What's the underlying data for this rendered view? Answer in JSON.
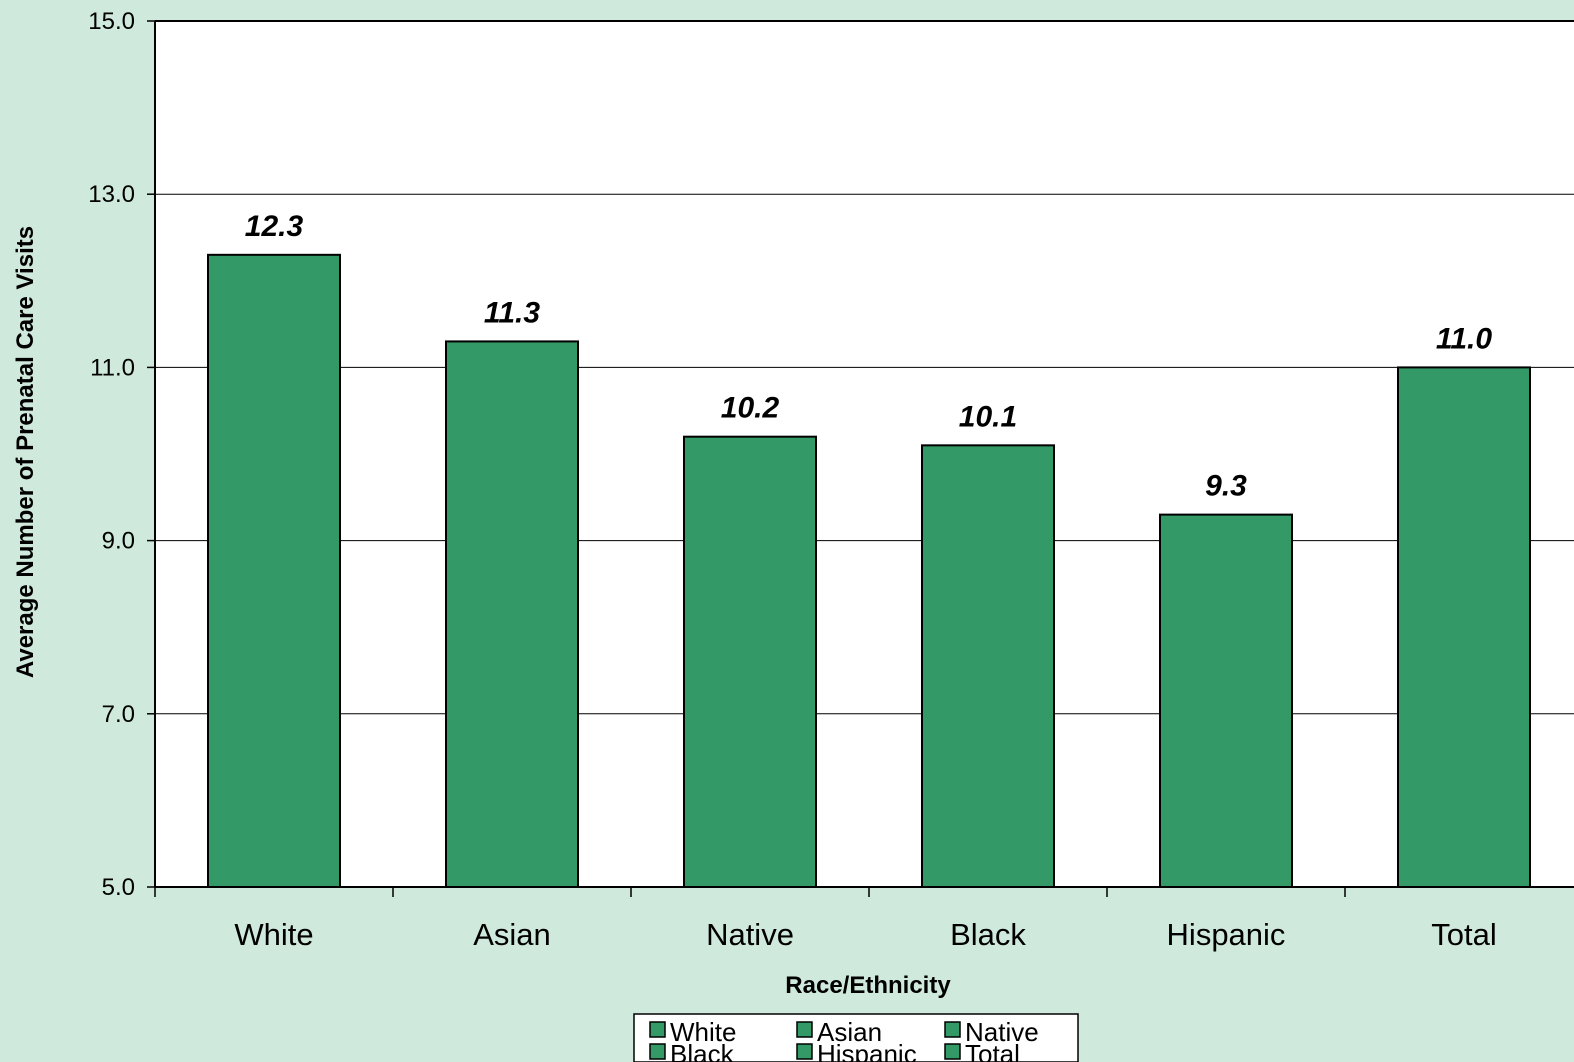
{
  "chart_data": {
    "type": "bar",
    "categories": [
      "White",
      "Asian",
      "Native",
      "Black",
      "Hispanic",
      "Total"
    ],
    "values": [
      12.3,
      11.3,
      10.2,
      10.1,
      9.3,
      11.0
    ],
    "data_labels": [
      "12.3",
      "11.3",
      "10.2",
      "10.1",
      "9.3",
      "11.0"
    ],
    "xlabel": "Race/Ethnicity",
    "ylabel": "Average Number of Prenatal Care Visits",
    "ylim": [
      5.0,
      15.0
    ],
    "yticks": [
      "5.0",
      "7.0",
      "9.0",
      "11.0",
      "13.0",
      "15.0"
    ],
    "grid": true,
    "legend": {
      "placement": "bottom",
      "entries": [
        "White",
        "Asian",
        "Native",
        "Black",
        "Hispanic",
        "Total"
      ]
    },
    "colors": {
      "bar": "#339966",
      "background": "#cfe9dc",
      "plot_area": "#ffffff"
    }
  }
}
